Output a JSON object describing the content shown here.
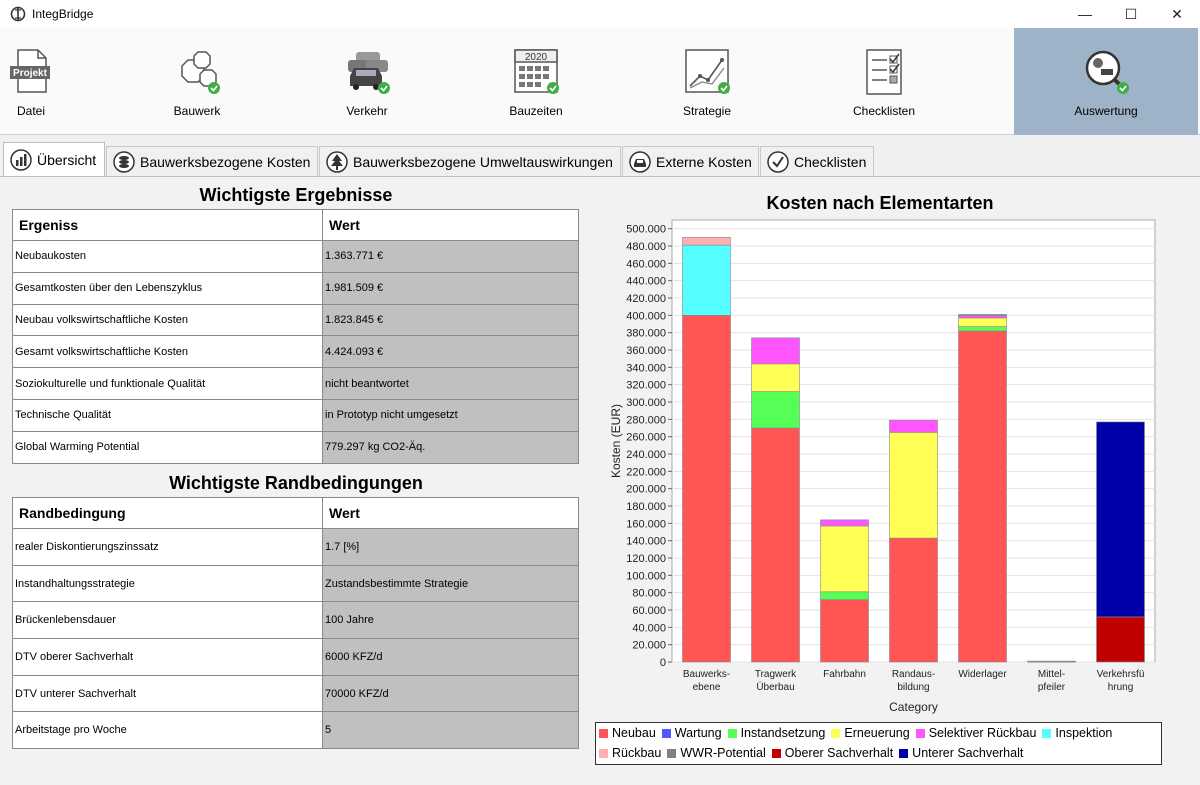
{
  "window": {
    "title": "IntegBridge",
    "minimize": "—",
    "maximize": "☐",
    "close": "✕"
  },
  "toolbar": [
    {
      "label": "Datei",
      "icon": "projekt-icon"
    },
    {
      "label": "Bauwerk",
      "icon": "bauwerk-icon"
    },
    {
      "label": "Verkehr",
      "icon": "verkehr-icon"
    },
    {
      "label": "Bauzeiten",
      "icon": "calendar-icon"
    },
    {
      "label": "Strategie",
      "icon": "strategy-chart-icon"
    },
    {
      "label": "Checklisten",
      "icon": "checklist-icon"
    },
    {
      "label": "Auswertung",
      "icon": "evaluation-icon",
      "active": true
    }
  ],
  "toolbar_badges": {
    "projekt": "Projekt",
    "year": "2020"
  },
  "tabs": [
    {
      "label": "Übersicht",
      "active": true
    },
    {
      "label": "Bauwerksbezogene Kosten"
    },
    {
      "label": "Bauwerksbezogene Umweltauswirkungen"
    },
    {
      "label": "Externe Kosten"
    },
    {
      "label": "Checklisten"
    }
  ],
  "results": {
    "title": "Wichtigste Ergebnisse",
    "headers": [
      "Ergeniss",
      "Wert"
    ],
    "rows": [
      [
        "Neubaukosten",
        "1.363.771 €"
      ],
      [
        "Gesamtkosten über den Lebenszyklus",
        "1.981.509 €"
      ],
      [
        "Neubau volkswirtschaftliche Kosten",
        "1.823.845 €"
      ],
      [
        "Gesamt volkswirtschaftliche Kosten",
        "4.424.093 €"
      ],
      [
        "Soziokulturelle und funktionale Qualität",
        "nicht beantwortet"
      ],
      [
        "Technische Qualität",
        "in Prototyp nicht umgesetzt"
      ],
      [
        "Global Warming Potential",
        "779.297  kg CO2-Äq."
      ]
    ]
  },
  "conditions": {
    "title": "Wichtigste Randbedingungen",
    "headers": [
      "Randbedingung",
      "Wert"
    ],
    "rows": [
      [
        "realer Diskontierungszinssatz",
        "1.7 [%]"
      ],
      [
        "Instandhaltungsstrategie",
        "Zustandsbestimmte Strategie"
      ],
      [
        "Brückenlebensdauer",
        "100 Jahre"
      ],
      [
        "DTV oberer Sachverhalt",
        "6000 KFZ/d"
      ],
      [
        "DTV unterer Sachverhalt",
        "70000 KFZ/d"
      ],
      [
        "Arbeitstage pro Woche",
        "5"
      ]
    ]
  },
  "chart_data": {
    "type": "bar",
    "stacked": true,
    "title": "Kosten nach Elementarten",
    "xlabel": "Category",
    "ylabel": "Kosten (EUR)",
    "ylim": [
      0,
      510000
    ],
    "yticks": [
      0,
      20000,
      40000,
      60000,
      80000,
      100000,
      120000,
      140000,
      160000,
      180000,
      200000,
      220000,
      240000,
      260000,
      280000,
      300000,
      320000,
      340000,
      360000,
      380000,
      400000,
      420000,
      440000,
      460000,
      480000,
      500000
    ],
    "grid": true,
    "legend_position": "bottom",
    "categories": [
      [
        "Bauwerks-",
        "ebene"
      ],
      [
        "Tragwerk",
        "Überbau"
      ],
      [
        "Fahrbahn"
      ],
      [
        "Randaus-",
        "bildung"
      ],
      [
        "Widerlager"
      ],
      [
        "Mittel-",
        "pfeiler"
      ],
      [
        "Verkehrsfü",
        "hrung"
      ]
    ],
    "series": [
      {
        "name": "Neubau",
        "color": "#ff5555",
        "values": [
          400000,
          270000,
          72000,
          143000,
          382000,
          0,
          0
        ]
      },
      {
        "name": "Wartung",
        "color": "#5555ff",
        "values": [
          0,
          0,
          0,
          0,
          0,
          0,
          0
        ]
      },
      {
        "name": "Instandsetzung",
        "color": "#55ff55",
        "values": [
          0,
          42000,
          9000,
          0,
          5000,
          0,
          0
        ]
      },
      {
        "name": "Erneuerung",
        "color": "#ffff55",
        "values": [
          0,
          32000,
          76000,
          122000,
          10000,
          0,
          0
        ]
      },
      {
        "name": "Selektiver Rückbau",
        "color": "#ff55ff",
        "values": [
          0,
          30000,
          7000,
          14000,
          3000,
          0,
          0
        ]
      },
      {
        "name": "Inspektion",
        "color": "#55ffff",
        "values": [
          81000,
          0,
          0,
          0,
          0,
          0,
          0
        ]
      },
      {
        "name": "Rückbau",
        "color": "#ffafaf",
        "values": [
          9000,
          0,
          0,
          0,
          0,
          0,
          0
        ]
      },
      {
        "name": "WWR-Potential",
        "color": "#808080",
        "values": [
          0,
          0,
          0,
          0,
          1000,
          1000,
          0
        ]
      },
      {
        "name": "Oberer Sachverhalt",
        "color": "#c00000",
        "values": [
          0,
          0,
          0,
          0,
          0,
          0,
          52000
        ]
      },
      {
        "name": "Unterer Sachverhalt",
        "color": "#0000a8",
        "values": [
          0,
          0,
          0,
          0,
          0,
          0,
          225000
        ]
      }
    ],
    "legend_rows": [
      [
        0,
        1,
        2,
        3,
        4,
        5
      ],
      [
        6,
        7,
        8,
        9
      ]
    ]
  }
}
